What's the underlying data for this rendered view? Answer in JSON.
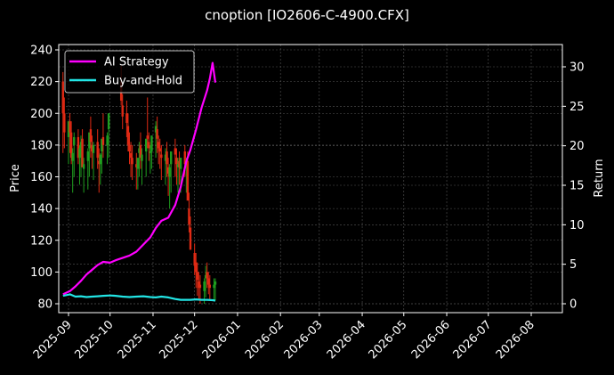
{
  "title": "cnoption [IO2606-C-4900.CFX]",
  "chart_data": {
    "type": "line",
    "title": "cnoption [IO2606-C-4900.CFX]",
    "xlabel": "",
    "ylabel_left": "Price",
    "ylabel_right": "Return",
    "ylim_left": [
      76,
      243
    ],
    "ylim_right": [
      -1.1,
      32.8
    ],
    "yticks_left": [
      80,
      100,
      120,
      140,
      160,
      180,
      200,
      220,
      240
    ],
    "yticks_right": [
      0,
      5,
      10,
      15,
      20,
      25,
      30
    ],
    "xticks": [
      "2025-09",
      "2025-10",
      "2025-11",
      "2025-12",
      "2026-01",
      "2026-02",
      "2026-03",
      "2026-04",
      "2026-05",
      "2026-06",
      "2026-07",
      "2026-08"
    ],
    "grid": true,
    "legend_position": "upper left",
    "legend": [
      {
        "label": "AI Strategy",
        "color": "#ff00ff"
      },
      {
        "label": "Buy-and-Hold",
        "color": "#22e5e5"
      }
    ],
    "series": [
      {
        "name": "AI Strategy",
        "axis": "right",
        "color": "#ff00ff",
        "x": [
          "2025-08-28",
          "2025-09-02",
          "2025-09-06",
          "2025-09-10",
          "2025-09-14",
          "2025-09-18",
          "2025-09-22",
          "2025-09-26",
          "2025-10-01",
          "2025-10-05",
          "2025-10-10",
          "2025-10-15",
          "2025-10-20",
          "2025-10-25",
          "2025-10-30",
          "2025-11-03",
          "2025-11-07",
          "2025-11-12",
          "2025-11-17",
          "2025-11-21",
          "2025-11-25",
          "2025-11-28",
          "2025-12-02",
          "2025-12-06",
          "2025-12-10",
          "2025-12-12",
          "2025-12-14",
          "2025-12-16"
        ],
        "values": [
          1.2,
          1.6,
          2.2,
          2.9,
          3.7,
          4.3,
          4.9,
          5.3,
          5.2,
          5.5,
          5.8,
          6.1,
          6.6,
          7.5,
          8.4,
          9.6,
          10.5,
          10.9,
          12.5,
          14.8,
          18.0,
          19.5,
          22.0,
          24.8,
          27.0,
          28.5,
          30.5,
          28.0
        ]
      },
      {
        "name": "Buy-and-Hold",
        "axis": "right",
        "color": "#22e5e5",
        "x": [
          "2025-08-28",
          "2025-09-02",
          "2025-09-06",
          "2025-09-10",
          "2025-09-14",
          "2025-09-18",
          "2025-09-22",
          "2025-09-26",
          "2025-10-01",
          "2025-10-05",
          "2025-10-10",
          "2025-10-15",
          "2025-10-20",
          "2025-10-25",
          "2025-10-30",
          "2025-11-03",
          "2025-11-07",
          "2025-11-12",
          "2025-11-17",
          "2025-11-21",
          "2025-11-25",
          "2025-11-28",
          "2025-12-02",
          "2025-12-06",
          "2025-12-10",
          "2025-12-14",
          "2025-12-16"
        ],
        "values": [
          1.0,
          1.2,
          0.9,
          0.95,
          0.85,
          0.9,
          0.95,
          1.0,
          1.05,
          1.0,
          0.9,
          0.85,
          0.9,
          0.95,
          0.85,
          0.8,
          0.9,
          0.8,
          0.6,
          0.5,
          0.5,
          0.5,
          0.55,
          0.5,
          0.5,
          0.45,
          0.4
        ]
      },
      {
        "name": "Price (OHLC bars)",
        "axis": "left",
        "type": "candlestick",
        "up_color": "#1f9e1f",
        "down_color": "#e02a14",
        "x": [
          "2025-08-28",
          "2025-08-29",
          "2025-09-01",
          "2025-09-02",
          "2025-09-03",
          "2025-09-04",
          "2025-09-05",
          "2025-09-08",
          "2025-09-09",
          "2025-09-10",
          "2025-09-11",
          "2025-09-12",
          "2025-09-15",
          "2025-09-16",
          "2025-09-17",
          "2025-09-18",
          "2025-09-19",
          "2025-09-22",
          "2025-09-23",
          "2025-09-24",
          "2025-09-25",
          "2025-09-26",
          "2025-09-29",
          "2025-09-30",
          "2025-10-09",
          "2025-10-10",
          "2025-10-13",
          "2025-10-14",
          "2025-10-15",
          "2025-10-16",
          "2025-10-17",
          "2025-10-20",
          "2025-10-21",
          "2025-10-22",
          "2025-10-23",
          "2025-10-24",
          "2025-10-27",
          "2025-10-28",
          "2025-10-29",
          "2025-10-30",
          "2025-10-31",
          "2025-11-03",
          "2025-11-04",
          "2025-11-05",
          "2025-11-06",
          "2025-11-07",
          "2025-11-10",
          "2025-11-11",
          "2025-11-12",
          "2025-11-13",
          "2025-11-14",
          "2025-11-17",
          "2025-11-18",
          "2025-11-19",
          "2025-11-20",
          "2025-11-21",
          "2025-11-24",
          "2025-11-25",
          "2025-11-26",
          "2025-11-27",
          "2025-11-28",
          "2025-12-01",
          "2025-12-02",
          "2025-12-03",
          "2025-12-04",
          "2025-12-05",
          "2025-12-08",
          "2025-12-09",
          "2025-12-10",
          "2025-12-11",
          "2025-12-12",
          "2025-12-15",
          "2025-12-16"
        ],
        "open": [
          220,
          200,
          185,
          195,
          188,
          170,
          180,
          185,
          172,
          178,
          184,
          165,
          170,
          178,
          190,
          180,
          175,
          182,
          170,
          168,
          176,
          185,
          180,
          190,
          220,
          205,
          200,
          192,
          180,
          175,
          172,
          168,
          165,
          175,
          180,
          170,
          176,
          186,
          182,
          175,
          176,
          188,
          190,
          182,
          178,
          174,
          170,
          176,
          166,
          160,
          168,
          178,
          172,
          166,
          170,
          165,
          176,
          166,
          170,
          140,
          128,
          112,
          106,
          100,
          94,
          92,
          88,
          96,
          100,
          96,
          92,
          90,
          92
        ],
        "high": [
          226,
          210,
          192,
          200,
          195,
          178,
          188,
          190,
          180,
          186,
          190,
          172,
          178,
          185,
          198,
          186,
          182,
          190,
          178,
          175,
          182,
          200,
          188,
          200,
          230,
          212,
          208,
          200,
          188,
          182,
          180,
          175,
          172,
          182,
          188,
          178,
          184,
          210,
          188,
          180,
          185,
          195,
          198,
          186,
          184,
          180,
          178,
          182,
          172,
          168,
          176,
          184,
          178,
          172,
          176,
          172,
          180,
          172,
          176,
          150,
          135,
          118,
          112,
          106,
          100,
          98,
          96,
          104,
          106,
          100,
          98,
          96,
          96
        ],
        "low": [
          175,
          178,
          168,
          175,
          168,
          150,
          160,
          168,
          155,
          160,
          168,
          150,
          152,
          160,
          172,
          165,
          158,
          165,
          150,
          155,
          162,
          172,
          168,
          172,
          205,
          190,
          185,
          176,
          168,
          160,
          158,
          152,
          152,
          160,
          165,
          155,
          160,
          178,
          170,
          162,
          165,
          172,
          175,
          168,
          165,
          158,
          155,
          160,
          148,
          140,
          150,
          160,
          155,
          150,
          155,
          150,
          160,
          150,
          152,
          125,
          115,
          98,
          90,
          85,
          82,
          80,
          80,
          84,
          90,
          86,
          82,
          82,
          82
        ],
        "close": [
          200,
          188,
          195,
          188,
          172,
          175,
          185,
          172,
          178,
          182,
          166,
          168,
          176,
          188,
          182,
          176,
          180,
          172,
          168,
          174,
          184,
          180,
          186,
          200,
          208,
          198,
          194,
          180,
          176,
          172,
          168,
          166,
          172,
          178,
          172,
          174,
          184,
          184,
          178,
          176,
          186,
          192,
          184,
          178,
          176,
          172,
          174,
          168,
          162,
          166,
          176,
          174,
          168,
          168,
          166,
          172,
          168,
          170,
          145,
          130,
          114,
          104,
          100,
          95,
          90,
          90,
          94,
          98,
          96,
          92,
          90,
          92,
          94
        ]
      }
    ]
  }
}
